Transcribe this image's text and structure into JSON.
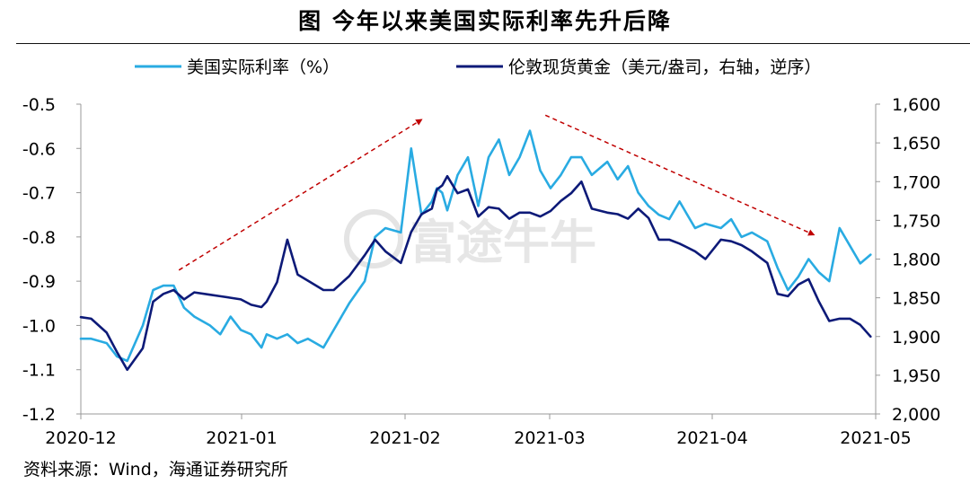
{
  "figure": {
    "title": "图  今年以来美国实际利率先升后降",
    "source": "资料来源：Wind，海通证券研究所",
    "watermark": "富途牛牛"
  },
  "chart_data": {
    "type": "line",
    "title": "图  今年以来美国实际利率先升后降",
    "x_ticks": [
      "2020-12",
      "2021-01",
      "2021-02",
      "2021-03",
      "2021-04",
      "2021-05"
    ],
    "x_range": [
      "2020-12-01",
      "2021-05-04"
    ],
    "y_left": {
      "min": -1.2,
      "max": -0.5,
      "ticks": [
        "-0.5",
        "-0.6",
        "-0.7",
        "-0.8",
        "-0.9",
        "-1.0",
        "-1.1",
        "-1.2"
      ]
    },
    "y_right": {
      "min": 1600,
      "max": 2000,
      "inverted": true,
      "ticks": [
        "1,600",
        "1,650",
        "1,700",
        "1,750",
        "1,800",
        "1,850",
        "1,900",
        "1,950",
        "2,000"
      ]
    },
    "legend_position": "top",
    "series": [
      {
        "name": "美国实际利率（%）",
        "axis": "left",
        "color": "#29abe2",
        "x": [
          "2020-12-01",
          "2020-12-03",
          "2020-12-06",
          "2020-12-08",
          "2020-12-10",
          "2020-12-13",
          "2020-12-15",
          "2020-12-17",
          "2020-12-19",
          "2020-12-21",
          "2020-12-23",
          "2020-12-26",
          "2020-12-28",
          "2020-12-30",
          "2021-01-01",
          "2021-01-03",
          "2021-01-05",
          "2021-01-06",
          "2021-01-08",
          "2021-01-10",
          "2021-01-12",
          "2021-01-14",
          "2021-01-17",
          "2021-01-19",
          "2021-01-22",
          "2021-01-25",
          "2021-01-27",
          "2021-01-29",
          "2021-02-01",
          "2021-02-03",
          "2021-02-05",
          "2021-02-07",
          "2021-02-08",
          "2021-02-09",
          "2021-02-10",
          "2021-02-12",
          "2021-02-14",
          "2021-02-16",
          "2021-02-18",
          "2021-02-20",
          "2021-02-22",
          "2021-02-24",
          "2021-02-26",
          "2021-02-28",
          "2021-03-02",
          "2021-03-04",
          "2021-03-06",
          "2021-03-08",
          "2021-03-10",
          "2021-03-13",
          "2021-03-15",
          "2021-03-17",
          "2021-03-19",
          "2021-03-21",
          "2021-03-23",
          "2021-03-25",
          "2021-03-27",
          "2021-03-30",
          "2021-04-01",
          "2021-04-04",
          "2021-04-06",
          "2021-04-08",
          "2021-04-10",
          "2021-04-13",
          "2021-04-15",
          "2021-04-17",
          "2021-04-19",
          "2021-04-21",
          "2021-04-23",
          "2021-04-25",
          "2021-04-27",
          "2021-04-29",
          "2021-05-01",
          "2021-05-03"
        ],
        "values": [
          -1.03,
          -1.03,
          -1.04,
          -1.07,
          -1.08,
          -1.0,
          -0.92,
          -0.91,
          -0.91,
          -0.96,
          -0.98,
          -1.0,
          -1.02,
          -0.98,
          -1.01,
          -1.02,
          -1.05,
          -1.02,
          -1.03,
          -1.02,
          -1.04,
          -1.03,
          -1.05,
          -1.01,
          -0.95,
          -0.9,
          -0.8,
          -0.78,
          -0.79,
          -0.6,
          -0.75,
          -0.72,
          -0.69,
          -0.7,
          -0.74,
          -0.66,
          -0.62,
          -0.73,
          -0.62,
          -0.58,
          -0.66,
          -0.62,
          -0.56,
          -0.65,
          -0.69,
          -0.66,
          -0.62,
          -0.62,
          -0.66,
          -0.63,
          -0.67,
          -0.64,
          -0.7,
          -0.73,
          -0.75,
          -0.76,
          -0.72,
          -0.78,
          -0.77,
          -0.78,
          -0.76,
          -0.8,
          -0.79,
          -0.81,
          -0.87,
          -0.92,
          -0.89,
          -0.85,
          -0.88,
          -0.9,
          -0.78,
          -0.82,
          -0.86,
          -0.84
        ]
      },
      {
        "name": "伦敦现货黄金（美元/盎司，右轴，逆序）",
        "axis": "right",
        "color": "#0d1a78",
        "x": [
          "2020-12-01",
          "2020-12-03",
          "2020-12-06",
          "2020-12-08",
          "2020-12-10",
          "2020-12-13",
          "2020-12-15",
          "2020-12-17",
          "2020-12-19",
          "2020-12-21",
          "2020-12-23",
          "2020-12-26",
          "2020-12-28",
          "2020-12-30",
          "2021-01-01",
          "2021-01-03",
          "2021-01-05",
          "2021-01-06",
          "2021-01-08",
          "2021-01-10",
          "2021-01-12",
          "2021-01-14",
          "2021-01-17",
          "2021-01-19",
          "2021-01-22",
          "2021-01-25",
          "2021-01-27",
          "2021-01-29",
          "2021-02-01",
          "2021-02-03",
          "2021-02-05",
          "2021-02-07",
          "2021-02-08",
          "2021-02-09",
          "2021-02-10",
          "2021-02-12",
          "2021-02-14",
          "2021-02-16",
          "2021-02-18",
          "2021-02-20",
          "2021-02-22",
          "2021-02-24",
          "2021-02-26",
          "2021-02-28",
          "2021-03-02",
          "2021-03-04",
          "2021-03-06",
          "2021-03-08",
          "2021-03-10",
          "2021-03-13",
          "2021-03-15",
          "2021-03-17",
          "2021-03-19",
          "2021-03-21",
          "2021-03-23",
          "2021-03-25",
          "2021-03-27",
          "2021-03-30",
          "2021-04-01",
          "2021-04-04",
          "2021-04-06",
          "2021-04-08",
          "2021-04-10",
          "2021-04-13",
          "2021-04-15",
          "2021-04-17",
          "2021-04-19",
          "2021-04-21",
          "2021-04-23",
          "2021-04-25",
          "2021-04-27",
          "2021-04-29",
          "2021-05-01",
          "2021-05-03"
        ],
        "values": [
          1875,
          1877,
          1895,
          1920,
          1943,
          1915,
          1855,
          1845,
          1840,
          1852,
          1843,
          1846,
          1848,
          1850,
          1852,
          1859,
          1862,
          1855,
          1830,
          1775,
          1820,
          1828,
          1840,
          1840,
          1822,
          1795,
          1775,
          1790,
          1805,
          1765,
          1742,
          1735,
          1710,
          1705,
          1693,
          1715,
          1710,
          1745,
          1733,
          1735,
          1748,
          1740,
          1740,
          1745,
          1738,
          1725,
          1715,
          1700,
          1735,
          1740,
          1742,
          1748,
          1735,
          1747,
          1775,
          1775,
          1780,
          1790,
          1800,
          1775,
          1777,
          1782,
          1790,
          1805,
          1845,
          1848,
          1833,
          1826,
          1855,
          1880,
          1877,
          1877,
          1885,
          1900
        ]
      }
    ],
    "annotations": [
      {
        "type": "arrow",
        "style": "dashed",
        "color": "#c00000",
        "from": {
          "x": "2020-12-20",
          "y": -0.875
        },
        "to": {
          "x": "2021-02-05",
          "y": -0.535
        }
      },
      {
        "type": "arrow",
        "style": "dashed",
        "color": "#c00000",
        "from": {
          "x": "2021-03-01",
          "y": -0.525
        },
        "to": {
          "x": "2021-04-22",
          "y": -0.795
        }
      }
    ]
  }
}
